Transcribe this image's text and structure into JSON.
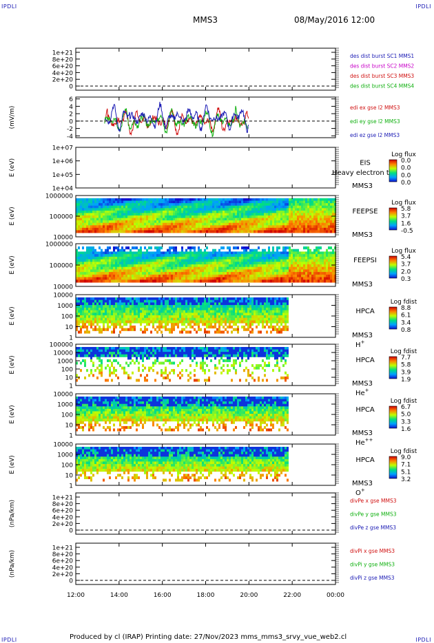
{
  "corner_label": "IPDLI",
  "header": {
    "mission": "MMS3",
    "datetime": "08/May/2016 12:00"
  },
  "footer": {
    "text": "Produced by cl (IRAP)   Printing date: 27/Nov/2023   mms_mms3_srvy_vue_web2.cl"
  },
  "x_ticks": [
    "12:00",
    "14:00",
    "16:00",
    "18:00",
    "20:00",
    "22:00",
    "00:00"
  ],
  "chart_data": [
    {
      "type": "line",
      "ylabel": "",
      "yticks": [
        "1e+21",
        "8e+20",
        "6e+20",
        "4e+20",
        "2e+20",
        "0"
      ],
      "legend": [
        {
          "text": "des dist burst SC1 MMS1",
          "color": "#1a1ab4"
        },
        {
          "text": "des dist burst SC2 MMS2",
          "color": "#c800c8"
        },
        {
          "text": "des dist burst SC3 MMS3",
          "color": "#d01010"
        },
        {
          "text": "des dist burst SC4 MMS4",
          "color": "#10b010"
        }
      ]
    },
    {
      "type": "line",
      "ylabel": "(mV/m)",
      "yticks": [
        "6",
        "4",
        "2",
        "0",
        "-2",
        "-4"
      ],
      "ylim": [
        -4.5,
        6.5
      ],
      "series": [
        {
          "name": "edi ex gse l2 MMS3",
          "color": "#d01010"
        },
        {
          "name": "edi ey gse l2 MMS3",
          "color": "#10b010"
        },
        {
          "name": "edi ez gse l2 MMS3",
          "color": "#1a1ab4"
        }
      ],
      "x_range": [
        "13:20",
        "20:00"
      ]
    },
    {
      "type": "heatmap",
      "ylabel": "E (eV)",
      "yticks": [
        "1e+07",
        "1e+06",
        "1e+05",
        "1e+04"
      ],
      "side_labels": [
        "EIS",
        "MMS3"
      ],
      "overlay": "Heavy electron to",
      "cb_title": "Log flux",
      "cb_ticks": [
        "0.0",
        "0.0",
        "0.0",
        "0.0"
      ],
      "coverage": "none"
    },
    {
      "type": "heatmap",
      "ylabel": "E (eV)",
      "yticks": [
        "1000000",
        "100000",
        "10000"
      ],
      "side_labels": [
        "FEEPSE",
        "MMS3"
      ],
      "cb_title": "Log flux",
      "cb_ticks": [
        "5.8",
        "3.7",
        "1.6",
        "-0.5"
      ],
      "coverage": "12:00-24:00"
    },
    {
      "type": "heatmap",
      "ylabel": "E (eV)",
      "yticks": [
        "1000000",
        "100000",
        "10000"
      ],
      "side_labels": [
        "FEEPSI",
        "MMS3"
      ],
      "cb_title": "Log flux",
      "cb_ticks": [
        "5.4",
        "3.7",
        "2.0",
        "0.3"
      ],
      "coverage": "12:00-24:00"
    },
    {
      "type": "heatmap",
      "ylabel": "E (eV)",
      "yticks": [
        "10000",
        "1000",
        "100",
        "10",
        "1"
      ],
      "side_labels": [
        "HPCA",
        "MMS3"
      ],
      "species": "H",
      "charge": "+",
      "cb_title": "Log fdist",
      "cb_ticks": [
        "8.8",
        "6.1",
        "3.4",
        "0.8"
      ],
      "coverage": "12:00-21:45"
    },
    {
      "type": "heatmap",
      "ylabel": "E (eV)",
      "yticks": [
        "100000",
        "10000",
        "1000",
        "100",
        "10",
        "1"
      ],
      "side_labels": [
        "HPCA",
        "MMS3"
      ],
      "species": "He",
      "charge": "+",
      "cb_title": "Log fdist",
      "cb_ticks": [
        "7.7",
        "5.8",
        "3.9",
        "1.9"
      ],
      "coverage": "12:00-21:45"
    },
    {
      "type": "heatmap",
      "ylabel": "E (eV)",
      "yticks": [
        "10000",
        "1000",
        "100",
        "10",
        "1"
      ],
      "side_labels": [
        "HPCA",
        "MMS3"
      ],
      "species": "He",
      "charge": "++",
      "cb_title": "Log fdist",
      "cb_ticks": [
        "6.7",
        "5.0",
        "3.3",
        "1.6"
      ],
      "coverage": "12:00-21:45"
    },
    {
      "type": "heatmap",
      "ylabel": "E (eV)",
      "yticks": [
        "10000",
        "1000",
        "100",
        "10",
        "1"
      ],
      "side_labels": [
        "HPCA",
        "MMS3"
      ],
      "species": "O",
      "charge": "+",
      "cb_title": "Log fdist",
      "cb_ticks": [
        "9.0",
        "7.1",
        "5.1",
        "3.2"
      ],
      "coverage": "12:00-21:45"
    },
    {
      "type": "line",
      "ylabel": "(nPa/km)",
      "yticks": [
        "1e+21",
        "8e+20",
        "6e+20",
        "4e+20",
        "2e+20",
        "0"
      ],
      "legend": [
        {
          "text": "divPe x gse MMS3",
          "color": "#d01010"
        },
        {
          "text": "divPe y gse MMS3",
          "color": "#10b010"
        },
        {
          "text": "divPe z gse MMS3",
          "color": "#1a1ab4"
        }
      ]
    },
    {
      "type": "line",
      "ylabel": "(nPa/km)",
      "yticks": [
        "1e+21",
        "8e+20",
        "6e+20",
        "4e+20",
        "2e+20",
        "0"
      ],
      "legend": [
        {
          "text": "divPi x gse MMS3",
          "color": "#d01010"
        },
        {
          "text": "divPi y gse MMS3",
          "color": "#10b010"
        },
        {
          "text": "divPi z gse MMS3",
          "color": "#1a1ab4"
        }
      ]
    }
  ]
}
